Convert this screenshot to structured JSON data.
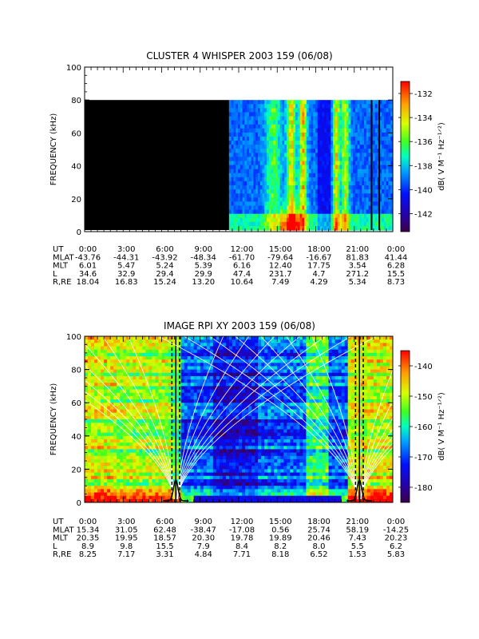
{
  "chart_data": [
    {
      "type": "heatmap",
      "title": "CLUSTER 4 WHISPER 2003 159 (06/08)",
      "ylabel": "FREQUENCY (kHz)",
      "ylim": [
        0,
        100
      ],
      "yticks": [
        "0",
        "20",
        "40",
        "60",
        "80",
        "100"
      ],
      "xticks": [
        "0:00",
        "3:00",
        "6:00",
        "9:00",
        "12:00",
        "15:00",
        "18:00",
        "21:00",
        "0:00"
      ],
      "colorbar": {
        "label": "dB( V M⁻¹ Hz⁻¹ᐟ²)",
        "range": [
          -143.5,
          -131
        ],
        "ticks": [
          "-132",
          "-134",
          "-136",
          "-138",
          "-140",
          "-142"
        ]
      },
      "ephemeris": [
        {
          "name": "UT",
          "values": [
            "0:00",
            "3:00",
            "6:00",
            "9:00",
            "12:00",
            "15:00",
            "18:00",
            "21:00",
            "0:00"
          ]
        },
        {
          "name": "MLAT",
          "values": [
            "-43.76",
            "-44.31",
            "-43.92",
            "-48.34",
            "-61.70",
            "-79.64",
            "-16.67",
            "81.83",
            "41.44"
          ]
        },
        {
          "name": "MLT",
          "values": [
            "6.01",
            "5.47",
            "5.24",
            "5.39",
            "6.16",
            "12.40",
            "17.75",
            "3.54",
            "6.28"
          ]
        },
        {
          "name": "L",
          "values": [
            "34.6",
            "32.9",
            "29.4",
            "29.9",
            "47.4",
            "231.7",
            "4.7",
            "271.2",
            "15.5"
          ]
        },
        {
          "name": "R,RE",
          "values": [
            "18.04",
            "16.83",
            "15.24",
            "13.20",
            "10.64",
            "7.49",
            "4.29",
            "5.34",
            "8.73"
          ]
        }
      ]
    },
    {
      "type": "heatmap",
      "title": "IMAGE RPI XY 2003 159 (06/08)",
      "ylabel": "FREQUENCY (kHz)",
      "ylim": [
        0,
        100
      ],
      "yticks": [
        "0",
        "20",
        "40",
        "60",
        "80",
        "100"
      ],
      "xticks": [
        "0:00",
        "3:00",
        "6:00",
        "9:00",
        "12:00",
        "15:00",
        "18:00",
        "21:00",
        "0:00"
      ],
      "colorbar": {
        "label": "dB( V M⁻¹ Hz⁻¹ᐟ²)",
        "range": [
          -185,
          -135
        ],
        "ticks": [
          "-140",
          "-150",
          "-160",
          "-170",
          "-180"
        ]
      },
      "ephemeris": [
        {
          "name": "UT",
          "values": [
            "0:00",
            "3:00",
            "6:00",
            "9:00",
            "12:00",
            "15:00",
            "18:00",
            "21:00",
            "0:00"
          ]
        },
        {
          "name": "MLAT",
          "values": [
            "15.34",
            "31.05",
            "62.48",
            "-38.47",
            "-17.08",
            "0.56",
            "25.74",
            "58.19",
            "-14.25"
          ]
        },
        {
          "name": "MLT",
          "values": [
            "20.35",
            "19.95",
            "18.57",
            "20.30",
            "19.78",
            "19.89",
            "20.46",
            "7.43",
            "20.23"
          ]
        },
        {
          "name": "L",
          "values": [
            "8.9",
            "9.8",
            "15.5",
            "7.9",
            "8.4",
            "8.2",
            "8.0",
            "5.5",
            "6.2"
          ]
        },
        {
          "name": "R,RE",
          "values": [
            "8.25",
            "7.17",
            "3.31",
            "4.84",
            "7.71",
            "8.18",
            "6.52",
            "1.53",
            "5.83"
          ]
        }
      ]
    }
  ]
}
